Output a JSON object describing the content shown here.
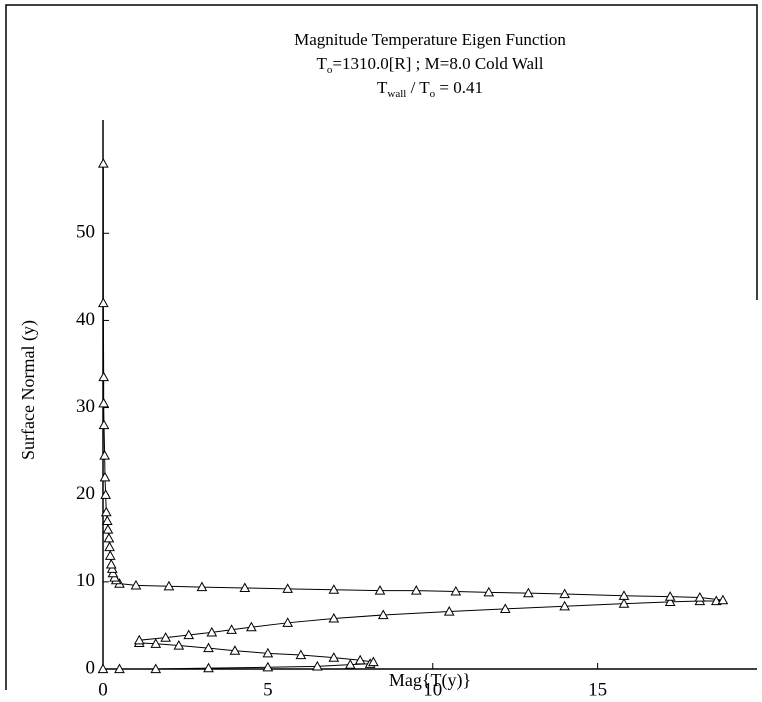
{
  "chart_data": {
    "type": "line",
    "title": "Magnitude Temperature Eigen Function",
    "subtitle": [
      "T",
      "o",
      "=1310.0[R] ; M=8.0 Cold Wall"
    ],
    "subtitle2": [
      "T",
      "wall",
      " / T",
      "o",
      " = 0.41"
    ],
    "x_label": "Mag{T(y)}",
    "y_label": "Surface Normal (y)",
    "xlim": [
      0,
      19.5
    ],
    "ylim": [
      0,
      63
    ],
    "xticks": [
      0,
      5,
      10,
      15
    ],
    "yticks": [
      0,
      10,
      20,
      30,
      40,
      50
    ],
    "marker": "triangle",
    "series": [
      {
        "color": "#000000",
        "x": [
          0,
          0.5,
          1.6,
          3.2,
          5,
          6.5,
          7.5,
          8.1,
          8.2,
          7.8,
          7,
          6,
          5,
          4,
          3.2,
          2.3,
          1.6,
          1.1,
          1.1,
          1.9,
          2.6,
          3.3,
          3.9,
          4.5,
          5.6,
          7,
          8.5,
          10.5,
          12.2,
          14,
          15.8,
          17.2,
          18.1,
          18.6,
          18.8,
          18.1,
          17.2,
          15.8,
          14,
          12.9,
          11.7,
          10.7,
          9.5,
          8.4,
          7,
          5.6,
          4.3,
          3,
          2,
          1,
          0.5,
          0.4,
          0.35,
          0.3,
          0.28,
          0.25,
          0.22,
          0.2,
          0.18,
          0.15,
          0.13,
          0.1,
          0.08,
          0.06,
          0.05,
          0.03,
          0.02,
          0.02,
          0.01,
          0.01
        ],
        "values": [
          0,
          0,
          0,
          0.1,
          0.2,
          0.3,
          0.5,
          0.6,
          0.8,
          1.0,
          1.3,
          1.6,
          1.8,
          2.1,
          2.4,
          2.7,
          2.9,
          3.0,
          3.3,
          3.6,
          3.9,
          4.2,
          4.5,
          4.8,
          5.3,
          5.8,
          6.2,
          6.6,
          6.9,
          7.2,
          7.5,
          7.7,
          7.8,
          7.8,
          7.9,
          8.2,
          8.3,
          8.4,
          8.6,
          8.7,
          8.8,
          8.9,
          9.0,
          9.0,
          9.1,
          9.2,
          9.3,
          9.4,
          9.5,
          9.6,
          9.8,
          10.2,
          10.5,
          11,
          11.5,
          12,
          13,
          14,
          15,
          16,
          17,
          18,
          20,
          22,
          24.5,
          28,
          30.5,
          33.5,
          42,
          58
        ]
      }
    ]
  }
}
